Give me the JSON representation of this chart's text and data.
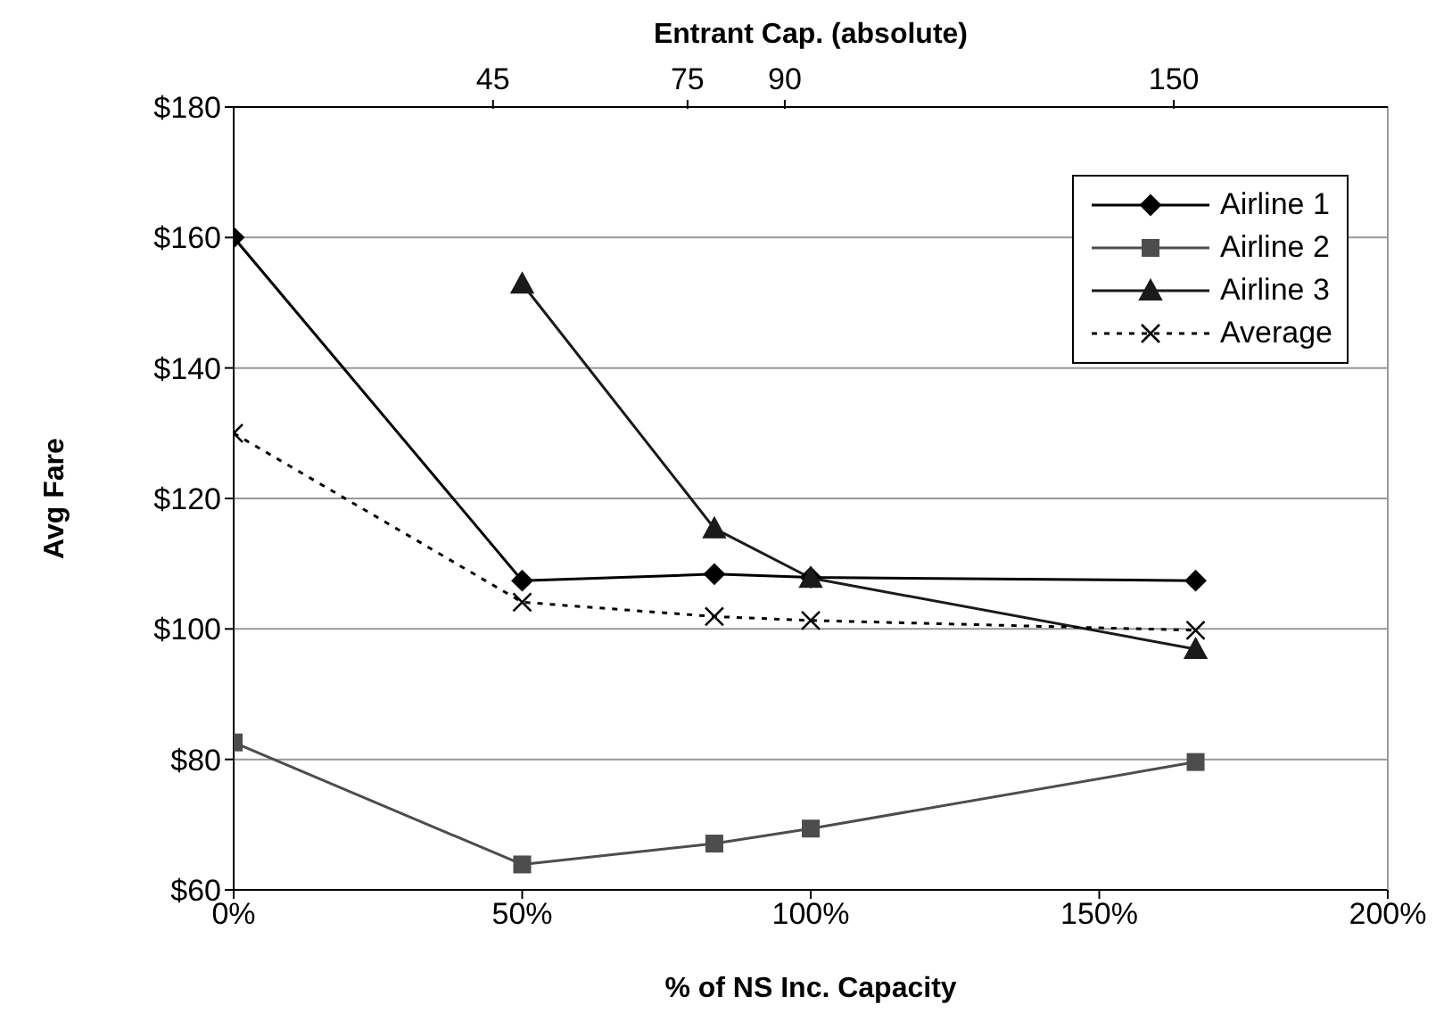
{
  "chart_data": {
    "type": "line",
    "xlabel": "% of NS Inc. Capacity",
    "ylabel": "Avg Fare",
    "x2label": "Entrant Cap. (absolute)",
    "x": [
      0,
      50,
      83.3,
      100,
      166.7
    ],
    "series": [
      {
        "name": "Airline 1",
        "color": "#000000",
        "marker": "diamond",
        "line_style": "solid",
        "values": [
          160,
          107.4,
          108.4,
          107.9,
          107.4
        ]
      },
      {
        "name": "Airline 2",
        "color": "#4d4d4d",
        "marker": "square",
        "line_style": "solid",
        "values": [
          82.6,
          63.9,
          67.1,
          69.4,
          79.6
        ]
      },
      {
        "name": "Airline 3",
        "color": "#1a1a1a",
        "marker": "triangle",
        "line_style": "solid",
        "values": [
          null,
          152.9,
          115.4,
          107.8,
          96.9
        ]
      },
      {
        "name": "Average",
        "color": "#000000",
        "marker": "cross",
        "line_style": "dotted",
        "values": [
          130,
          104.1,
          101.9,
          101.3,
          99.8
        ]
      }
    ],
    "xlim": [
      0,
      200
    ],
    "xticks": [
      {
        "value": 0,
        "label": "0%"
      },
      {
        "value": 50,
        "label": "50%"
      },
      {
        "value": 100,
        "label": "100%"
      },
      {
        "value": 150,
        "label": "150%"
      },
      {
        "value": 200,
        "label": "200%"
      }
    ],
    "x2lim": [
      5,
      183
    ],
    "x2ticks": [
      45,
      75,
      90,
      150
    ],
    "ylim": [
      60,
      180
    ],
    "yticks": [
      {
        "value": 60,
        "label": "$60"
      },
      {
        "value": 80,
        "label": "$80"
      },
      {
        "value": 100,
        "label": "$100"
      },
      {
        "value": 120,
        "label": "$120"
      },
      {
        "value": 140,
        "label": "$140"
      },
      {
        "value": 160,
        "label": "$160"
      },
      {
        "value": 180,
        "label": "$180"
      }
    ],
    "grid": "y",
    "legend": "top right"
  }
}
